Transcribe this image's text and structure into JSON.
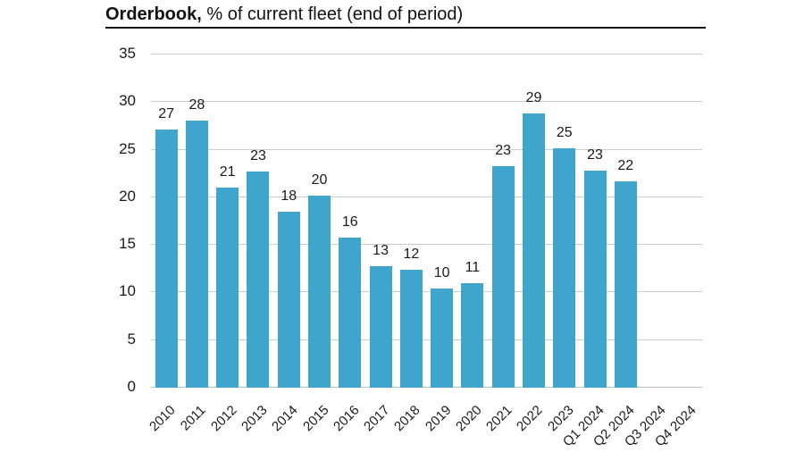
{
  "title": {
    "bold": "Orderbook,",
    "rest": " % of current fleet (end of period)"
  },
  "chart_data": {
    "type": "bar",
    "title": "Orderbook, % of current fleet (end of period)",
    "categories": [
      "2010",
      "2011",
      "2012",
      "2013",
      "2014",
      "2015",
      "2016",
      "2017",
      "2018",
      "2019",
      "2020",
      "2021",
      "2022",
      "2023",
      "Q1 2024",
      "Q2 2024",
      "Q3 2024",
      "Q4 2024"
    ],
    "values": [
      27,
      28,
      21,
      23,
      18,
      20,
      16,
      13,
      12,
      10,
      11,
      23,
      29,
      25,
      23,
      22,
      null,
      null
    ],
    "bar_heights_precise": [
      27,
      28,
      20.9,
      22.6,
      18.4,
      20.1,
      15.7,
      12.7,
      12.3,
      10.3,
      10.9,
      23.2,
      28.7,
      25.1,
      22.7,
      21.6,
      null,
      null
    ],
    "y_ticks": [
      0,
      5,
      10,
      15,
      20,
      25,
      30,
      35
    ],
    "ylim": [
      0,
      35
    ],
    "xlabel": "",
    "ylabel": "",
    "grid": true,
    "legend": false,
    "bar_color": "#3fa5cc",
    "gridline_color": "#cccccc",
    "axis_line_color": "#b9c6cc",
    "text_color": "#1a1a1a"
  }
}
